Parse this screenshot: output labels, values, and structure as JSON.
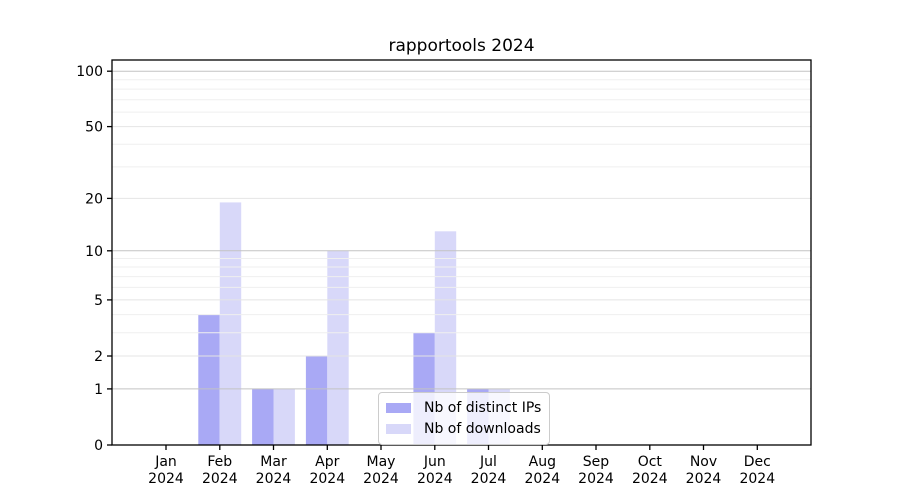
{
  "title": "rapportools 2024",
  "chart_data": {
    "type": "bar",
    "title": "rapportools 2024",
    "yscale": "log1p",
    "ylim": [
      0,
      115
    ],
    "grid": true,
    "legend_position": "lower-center-inside",
    "categories": [
      "Jan",
      "Feb",
      "Mar",
      "Apr",
      "May",
      "Jun",
      "Jul",
      "Aug",
      "Sep",
      "Oct",
      "Nov",
      "Dec"
    ],
    "category_year": "2024",
    "y_ticks": [
      0,
      1,
      2,
      5,
      10,
      20,
      50,
      100
    ],
    "y_minor_gridlines": [
      3,
      4,
      6,
      7,
      8,
      9,
      30,
      40,
      60,
      70,
      80,
      90
    ],
    "series": [
      {
        "name": "Nb of distinct IPs",
        "color": "#a9a9f5",
        "values": [
          0,
          4,
          1,
          2,
          0,
          3,
          1,
          0,
          0,
          0,
          0,
          0
        ]
      },
      {
        "name": "Nb of downloads",
        "color": "#d8d8f9",
        "values": [
          0,
          19,
          1,
          10,
          0,
          13,
          1,
          0,
          0,
          0,
          0,
          0
        ]
      }
    ]
  },
  "style": {
    "grid_major_color": "#c3c3c3",
    "grid_labeled_color": "#e4e4e4",
    "grid_minor_color": "#efefef",
    "spine_color": "#000000",
    "text_color": "#000000",
    "background": "#ffffff",
    "legend_border": "#cccccc"
  }
}
